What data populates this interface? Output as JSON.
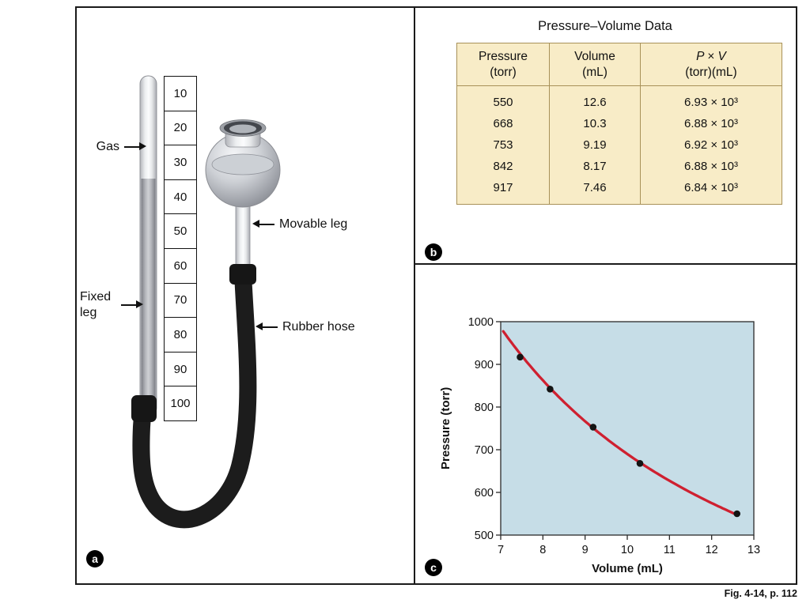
{
  "figure": {
    "caption": "Fig. 4-14, p. 112"
  },
  "panel_a": {
    "badge": "a",
    "gas_label": "Gas",
    "fixed_leg_label": "Fixed leg",
    "movable_leg_label": "Movable leg",
    "rubber_hose_label": "Rubber hose",
    "scale_labels": [
      "10",
      "20",
      "30",
      "40",
      "50",
      "60",
      "70",
      "80",
      "90",
      "100"
    ]
  },
  "panel_b": {
    "badge": "b",
    "title": "Pressure–Volume Data",
    "table": {
      "headers": [
        {
          "line1": "Pressure",
          "line2": "(torr)"
        },
        {
          "line1": "Volume",
          "line2": "(mL)"
        },
        {
          "line1": "P × V",
          "line2": "(torr)(mL)"
        }
      ],
      "rows": [
        [
          "550",
          "12.6",
          "6.93 × 10³"
        ],
        [
          "668",
          "10.3",
          "6.88 × 10³"
        ],
        [
          "753",
          "9.19",
          "6.92 × 10³"
        ],
        [
          "842",
          "8.17",
          "6.88 × 10³"
        ],
        [
          "917",
          "7.46",
          "6.84 × 10³"
        ]
      ],
      "colors": {
        "table_bg": "#f8ecc7",
        "table_border": "#a89158"
      }
    }
  },
  "panel_c": {
    "badge": "c"
  },
  "chart_data": {
    "type": "scatter",
    "title": "",
    "xlabel": "Volume (mL)",
    "ylabel": "Pressure (torr)",
    "xlim": [
      7,
      13
    ],
    "ylim": [
      500,
      1000
    ],
    "xticks": [
      7,
      8,
      9,
      10,
      11,
      12,
      13
    ],
    "yticks": [
      500,
      600,
      700,
      800,
      900,
      1000
    ],
    "points": [
      [
        7.46,
        917
      ],
      [
        8.17,
        842
      ],
      [
        9.19,
        753
      ],
      [
        10.3,
        668
      ],
      [
        12.6,
        550
      ]
    ],
    "fit_curve": {
      "type": "P = k / V",
      "k": 6900,
      "v_start": 7.06,
      "v_end": 12.6
    },
    "grid": false,
    "legend": null,
    "colors": {
      "plot_bg": "#c6dde7",
      "curve": "#cf2030",
      "point": "#141414"
    }
  }
}
